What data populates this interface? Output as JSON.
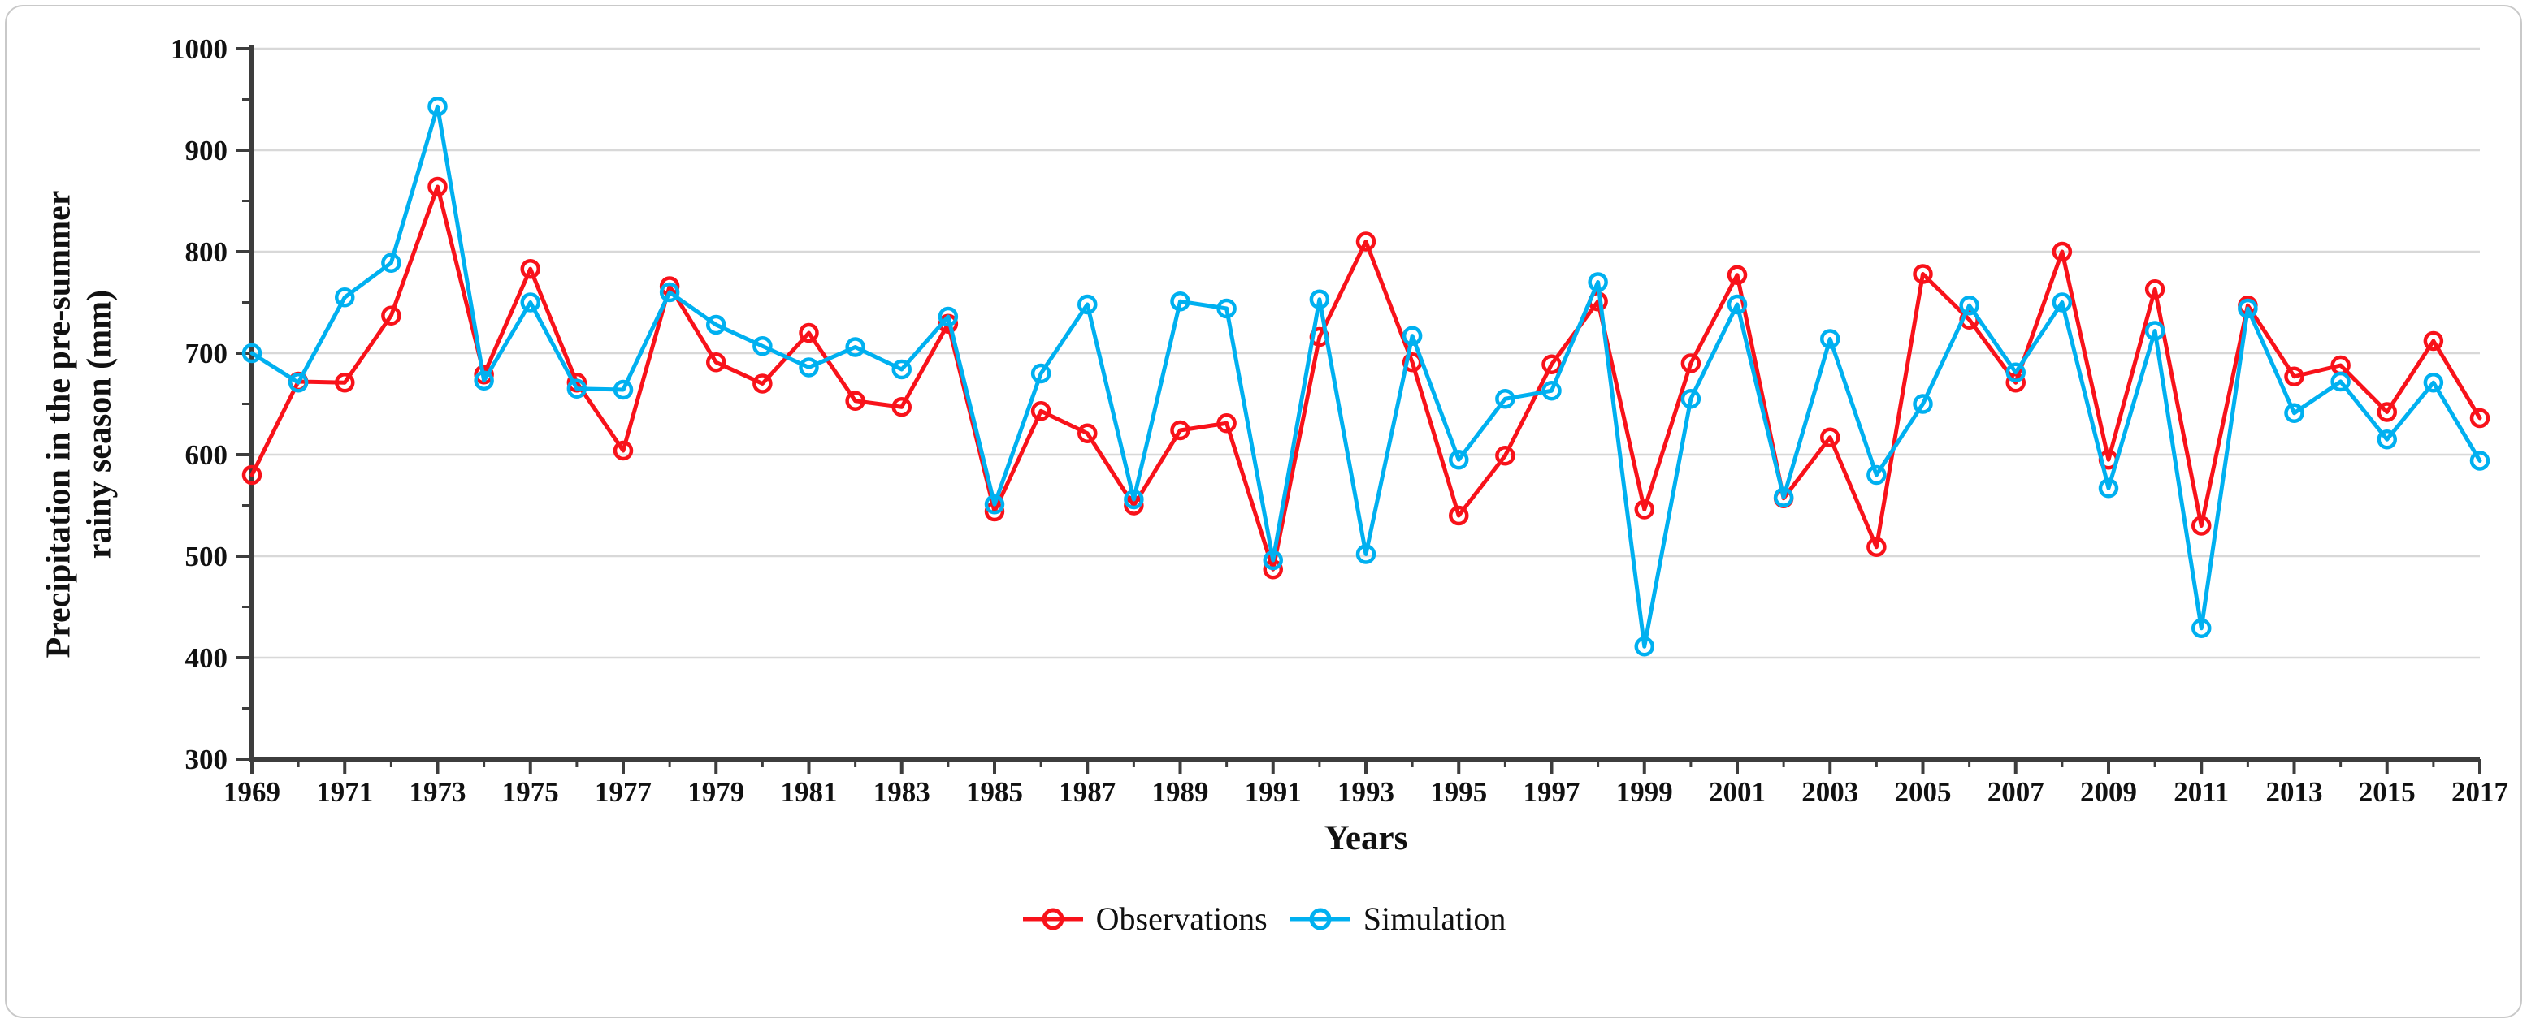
{
  "figure": {
    "y_axis_title_line1": "Precipitation in the pre-summer",
    "y_axis_title_line2": "rainy season (mm)",
    "x_axis_title": "Years"
  },
  "legend": {
    "observations_label": "Observations",
    "simulation_label": "Simulation"
  },
  "colors": {
    "observations": "#f8121a",
    "simulation": "#00b0f0",
    "gridline": "#d8d8d8",
    "axis": "#3d3d3d",
    "text": "#111111"
  },
  "chart_data": {
    "type": "line",
    "title": "",
    "xlabel": "Years",
    "ylabel": "Precipitation in the pre-summer rainy season (mm)",
    "ylim": [
      300,
      1000
    ],
    "y_major_ticks": [
      300,
      400,
      500,
      600,
      700,
      800,
      900,
      1000
    ],
    "y_minor_tick_step": 50,
    "x_tick_labels": [
      1969,
      1971,
      1973,
      1975,
      1977,
      1979,
      1981,
      1983,
      1985,
      1987,
      1989,
      1991,
      1993,
      1995,
      1997,
      1999,
      2001,
      2003,
      2005,
      2007,
      2009,
      2011,
      2013,
      2015,
      2017
    ],
    "grid": "horizontal",
    "legend_position": "bottom",
    "x": [
      1969,
      1970,
      1971,
      1972,
      1973,
      1974,
      1975,
      1976,
      1977,
      1978,
      1979,
      1980,
      1981,
      1982,
      1983,
      1984,
      1985,
      1986,
      1987,
      1988,
      1989,
      1990,
      1991,
      1992,
      1993,
      1994,
      1995,
      1996,
      1997,
      1998,
      1999,
      2000,
      2001,
      2002,
      2003,
      2004,
      2005,
      2006,
      2007,
      2008,
      2009,
      2010,
      2011,
      2012,
      2013,
      2014,
      2015,
      2016,
      2017
    ],
    "series": [
      {
        "name": "Observations",
        "color": "#f8121a",
        "values": [
          580,
          672,
          671,
          737,
          864,
          679,
          783,
          671,
          604,
          766,
          691,
          670,
          720,
          653,
          647,
          729,
          544,
          643,
          621,
          550,
          624,
          631,
          487,
          716,
          810,
          691,
          540,
          599,
          689,
          751,
          546,
          690,
          777,
          557,
          617,
          509,
          778,
          733,
          671,
          800,
          595,
          763,
          530,
          747,
          677,
          688,
          642,
          712,
          636
        ]
      },
      {
        "name": "Simulation",
        "color": "#00b0f0",
        "values": [
          700,
          671,
          755,
          789,
          943,
          673,
          750,
          665,
          664,
          760,
          728,
          707,
          686,
          706,
          684,
          736,
          551,
          680,
          748,
          556,
          751,
          744,
          496,
          753,
          502,
          717,
          595,
          655,
          663,
          770,
          411,
          655,
          748,
          558,
          714,
          580,
          650,
          747,
          681,
          750,
          567,
          722,
          429,
          744,
          641,
          672,
          615,
          671,
          594
        ]
      }
    ]
  }
}
